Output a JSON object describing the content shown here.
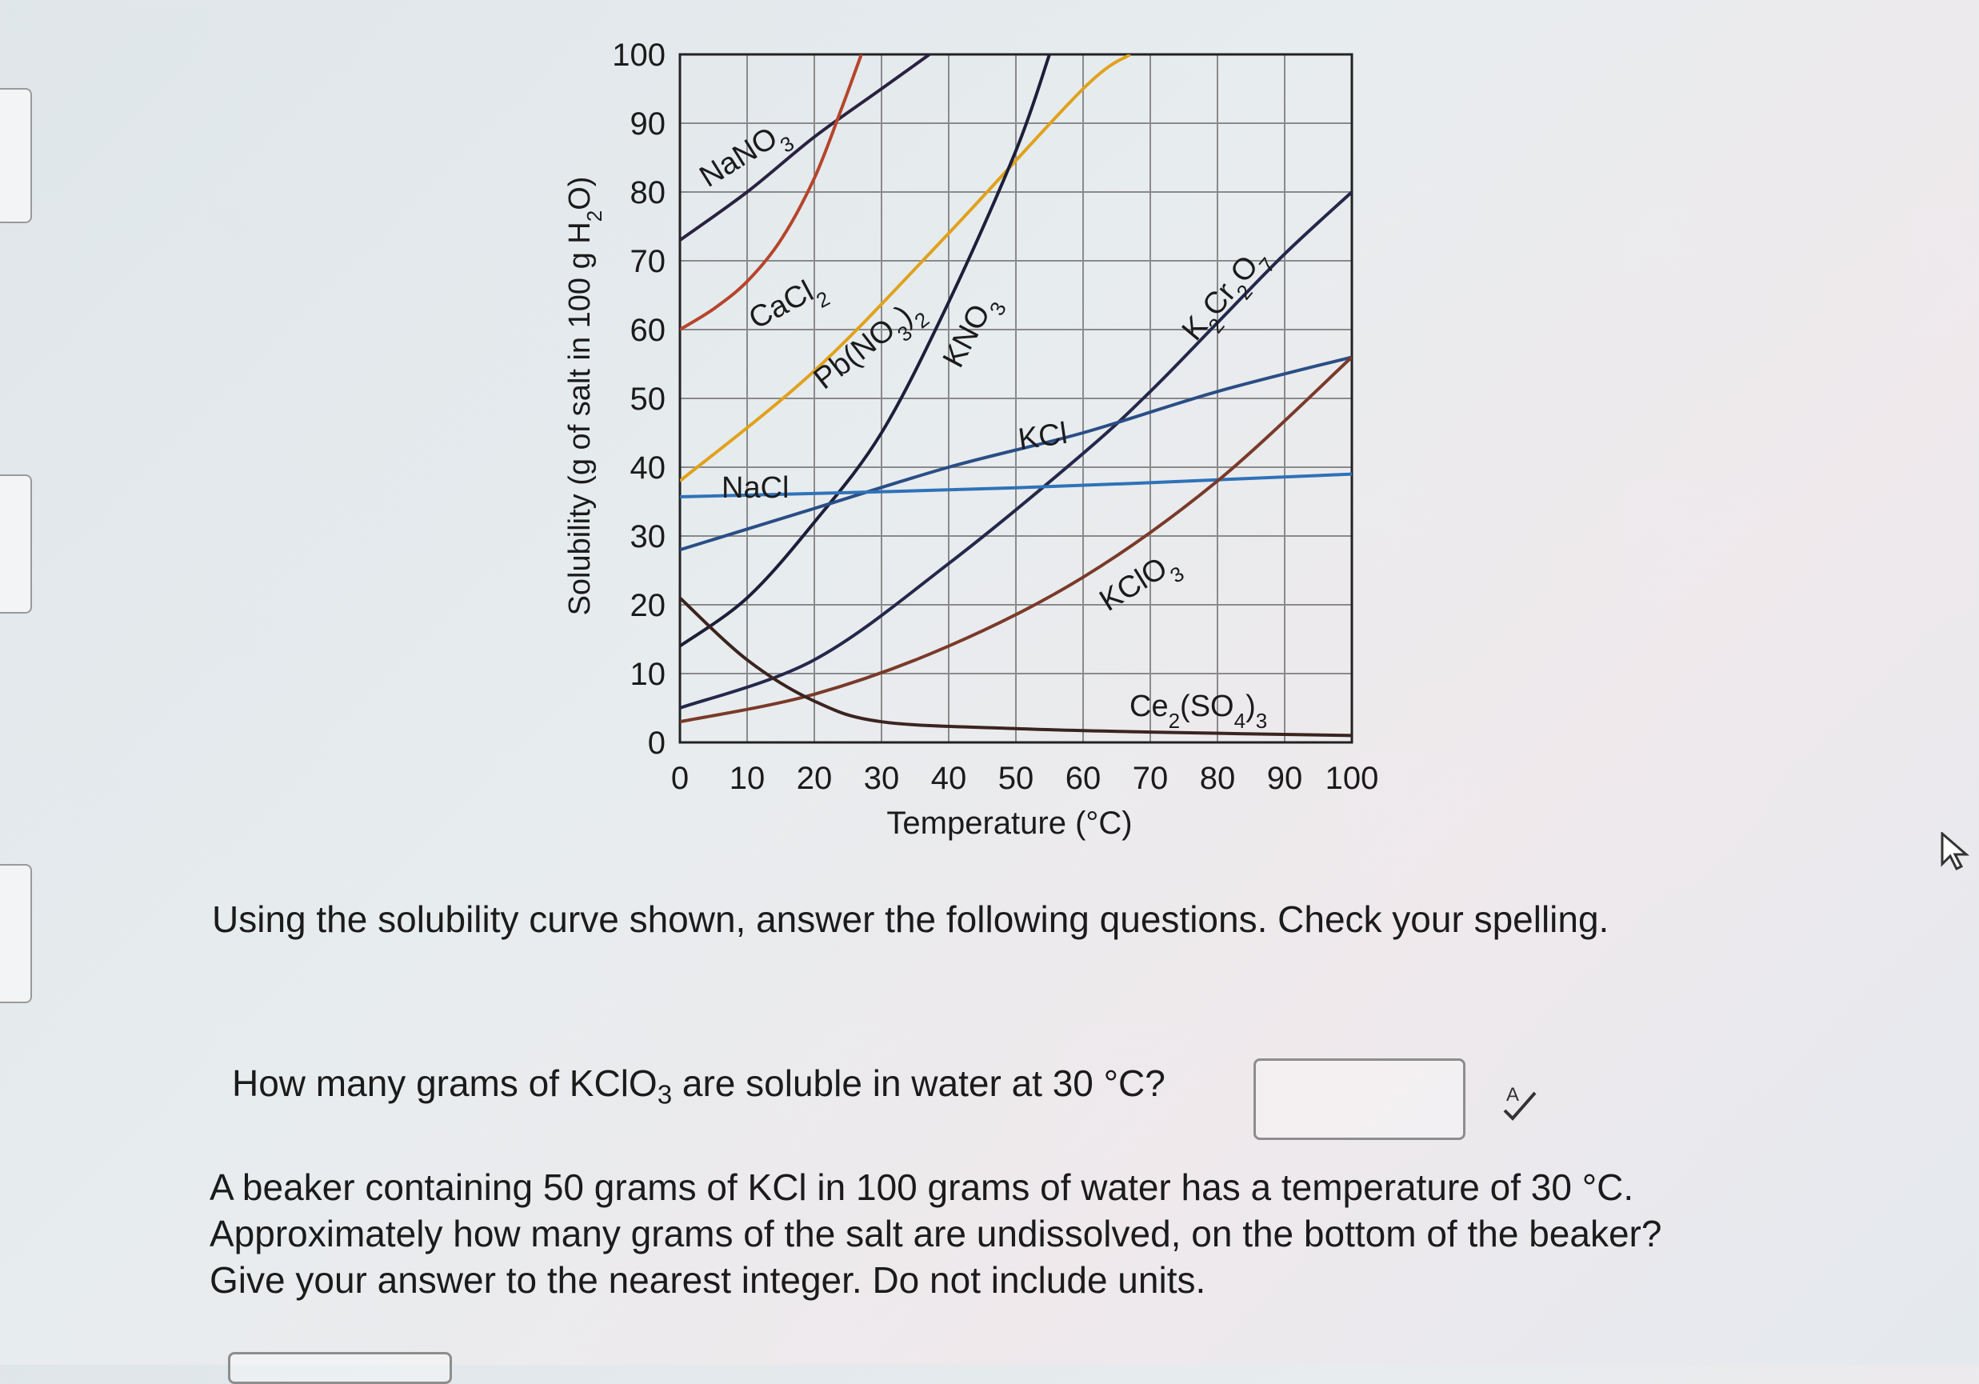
{
  "chart_data": {
    "type": "line",
    "title": "",
    "xlabel": "Temperature (°C)",
    "ylabel": "Solubility (g of salt in 100 g H₂O)",
    "xlim": [
      0,
      100
    ],
    "ylim": [
      0,
      100
    ],
    "x_ticks": [
      "0",
      "10",
      "20",
      "30",
      "40",
      "50",
      "60",
      "70",
      "80",
      "90",
      "100"
    ],
    "y_ticks": [
      "0",
      "10",
      "20",
      "30",
      "40",
      "50",
      "60",
      "70",
      "80",
      "90",
      "100"
    ],
    "grid": true,
    "legend": "none (series labels placed on the curves)",
    "series": [
      {
        "name": "NaNO₃",
        "color": "#2a2240",
        "x": [
          0,
          10,
          20,
          30,
          40
        ],
        "y": [
          73,
          80,
          88,
          95,
          102
        ]
      },
      {
        "name": "CaCl₂",
        "color": "#b5452c",
        "x": [
          0,
          5,
          10,
          15,
          20,
          24,
          27
        ],
        "y": [
          60,
          63,
          67,
          73,
          82,
          92,
          100
        ]
      },
      {
        "name": "Pb(NO₃)₂",
        "color": "#e0a21c",
        "x": [
          0,
          20,
          40,
          60,
          67
        ],
        "y": [
          38,
          54,
          74,
          95,
          100
        ]
      },
      {
        "name": "KNO₃",
        "color": "#1d1f3a",
        "x": [
          0,
          10,
          20,
          30,
          40,
          50,
          55
        ],
        "y": [
          14,
          21,
          32,
          45,
          64,
          86,
          100
        ]
      },
      {
        "name": "K₂Cr₂O₇",
        "color": "#24284a",
        "x": [
          0,
          20,
          40,
          60,
          70,
          80,
          90,
          100
        ],
        "y": [
          5,
          12,
          26,
          42,
          51,
          61,
          71,
          80
        ]
      },
      {
        "name": "KCl",
        "color": "#2a4e86",
        "x": [
          0,
          20,
          40,
          60,
          80,
          100
        ],
        "y": [
          28,
          34,
          40,
          45,
          51,
          56
        ]
      },
      {
        "name": "NaCl",
        "color": "#2f72b8",
        "x": [
          0,
          50,
          100
        ],
        "y": [
          35.7,
          37,
          39
        ]
      },
      {
        "name": "KClO₃",
        "color": "#7a3a2a",
        "x": [
          0,
          20,
          40,
          60,
          80,
          100
        ],
        "y": [
          3,
          7,
          14,
          24,
          38,
          56
        ]
      },
      {
        "name": "Ce₂(SO₄)₃",
        "color": "#3b2420",
        "x": [
          0,
          10,
          20,
          30,
          50,
          70,
          100
        ],
        "y": [
          21,
          12,
          6,
          3,
          2,
          1.5,
          1
        ]
      }
    ],
    "series_labels": [
      "NaNO",
      "CaCl",
      "Pb(NO",
      "KNO",
      "K",
      "Cr",
      "O",
      "KCl",
      "NaCl",
      "KClO",
      "Ce",
      "(SO",
      ")"
    ]
  },
  "page": {
    "prompt": "Using the solubility curve shown, answer the following questions. Check your spelling.",
    "q1_text_a": "How many grams of KClO",
    "q1_sub": "3",
    "q1_text_b": " are soluble in water at 30 °C?",
    "q2_text": "A beaker containing 50 grams of KCl in 100 grams of water has a temperature of 30 °C. Approximately how many grams of the salt are undissolved, on the bottom of the beaker? Give your answer to the nearest integer. Do not include units.",
    "answer1_value": "",
    "answer2_value": ""
  },
  "icons": {
    "spellcheck": "spellcheck-icon",
    "cursor": "mouse-pointer-icon"
  }
}
